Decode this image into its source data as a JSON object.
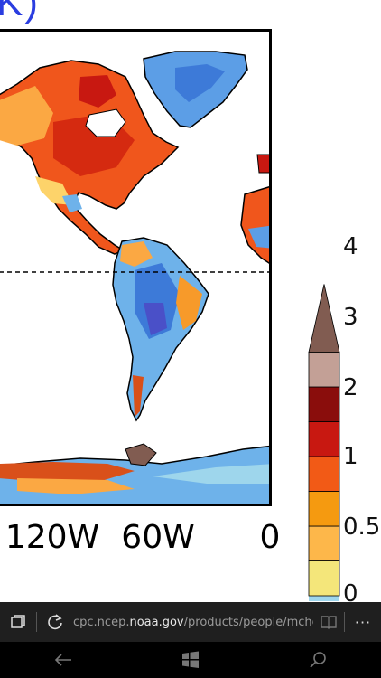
{
  "map": {
    "title_fragment": "K)",
    "longitude_labels": [
      "120W",
      "60W",
      "0"
    ]
  },
  "colorbar": {
    "ticks": [
      "4",
      "3",
      "2",
      "1",
      "0.5",
      "0"
    ],
    "colors": [
      "#f4e67a",
      "#fdb74a",
      "#f59a10",
      "#f25a16",
      "#c81811",
      "#8a0d0c",
      "#c3a096",
      "#815c51"
    ],
    "bottom_color": "#9ed6ec"
  },
  "browser": {
    "url_prefix": "cpc.ncep.",
    "url_host": "noaa.gov",
    "url_suffix": "/products/people/mcher",
    "tabs_icon": "tabs-icon",
    "refresh_icon": "refresh-icon",
    "reading_icon": "reading-view-icon",
    "more_label": "···"
  },
  "nav": {
    "back_icon": "back-arrow-icon",
    "home_icon": "windows-logo-icon",
    "search_icon": "search-icon"
  }
}
